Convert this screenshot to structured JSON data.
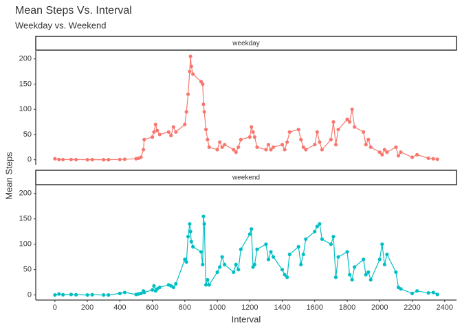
{
  "chart_data": {
    "type": "line",
    "title": "Mean Steps Vs. Interval",
    "subtitle": "Weekday vs. Weekend",
    "x_label": "Interval",
    "y_label": "Mean Steps",
    "facet": true,
    "x": [
      0,
      25,
      50,
      100,
      130,
      200,
      230,
      300,
      330,
      400,
      430,
      500,
      515,
      530,
      545,
      550,
      600,
      610,
      620,
      630,
      645,
      700,
      715,
      730,
      745,
      800,
      810,
      820,
      830,
      835,
      840,
      850,
      900,
      910,
      915,
      920,
      930,
      940,
      950,
      1000,
      1015,
      1030,
      1045,
      1100,
      1115,
      1130,
      1145,
      1200,
      1210,
      1220,
      1230,
      1245,
      1300,
      1315,
      1330,
      1345,
      1400,
      1415,
      1430,
      1445,
      1500,
      1515,
      1530,
      1545,
      1600,
      1615,
      1630,
      1645,
      1700,
      1715,
      1730,
      1745,
      1800,
      1815,
      1830,
      1845,
      1900,
      1915,
      1930,
      1945,
      2000,
      2015,
      2030,
      2045,
      2100,
      2115,
      2130,
      2200,
      2230,
      2300,
      2330,
      2355
    ],
    "series": [
      {
        "name": "weekday",
        "color": "#F8766D",
        "values": [
          2,
          0.5,
          0.3,
          0.5,
          0.3,
          0,
          0.2,
          0,
          0,
          0.5,
          1,
          2,
          3,
          5,
          20,
          40,
          45,
          55,
          70,
          58,
          50,
          55,
          48,
          65,
          55,
          70,
          95,
          130,
          175,
          205,
          185,
          170,
          155,
          150,
          110,
          95,
          60,
          40,
          25,
          20,
          35,
          25,
          30,
          20,
          15,
          25,
          40,
          45,
          65,
          55,
          45,
          25,
          20,
          30,
          20,
          25,
          30,
          20,
          35,
          55,
          60,
          40,
          25,
          20,
          30,
          55,
          35,
          20,
          40,
          75,
          30,
          60,
          80,
          75,
          100,
          65,
          55,
          30,
          40,
          25,
          15,
          10,
          20,
          15,
          25,
          8,
          15,
          5,
          10,
          3,
          2,
          1
        ]
      },
      {
        "name": "weekend",
        "color": "#00BFC4",
        "values": [
          0,
          2,
          0.5,
          1,
          0.5,
          0,
          0.5,
          0,
          0,
          3,
          5,
          1,
          2,
          3,
          8,
          5,
          10,
          18,
          8,
          12,
          15,
          20,
          18,
          15,
          22,
          70,
          65,
          115,
          140,
          125,
          105,
          95,
          85,
          60,
          155,
          140,
          20,
          30,
          20,
          45,
          55,
          75,
          60,
          45,
          60,
          50,
          90,
          120,
          130,
          55,
          60,
          90,
          100,
          70,
          85,
          75,
          50,
          40,
          35,
          80,
          95,
          60,
          80,
          110,
          125,
          135,
          140,
          110,
          100,
          115,
          35,
          75,
          85,
          40,
          30,
          55,
          70,
          40,
          45,
          30,
          70,
          100,
          60,
          80,
          45,
          15,
          12,
          3,
          8,
          4,
          5,
          1
        ]
      }
    ],
    "xlim": [
      -118,
      2473
    ],
    "xticks": [
      0,
      200,
      400,
      600,
      800,
      1000,
      1200,
      1400,
      1600,
      1800,
      2000,
      2200,
      2400
    ],
    "ylim": [
      -10,
      216
    ],
    "yticks": [
      0,
      50,
      100,
      150,
      200
    ]
  }
}
